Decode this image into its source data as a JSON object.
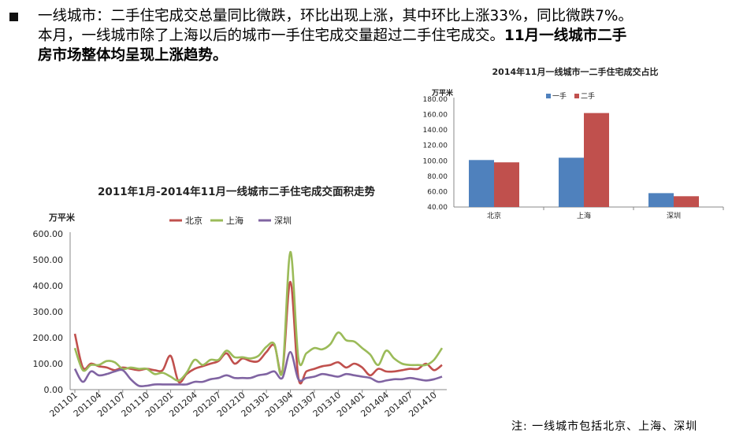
{
  "summary": {
    "line1": "一线城市：二手住宅成交总量同比微跌，环比出现上涨，其中环比上涨33%，同比微跌7%。",
    "line2_plain": "本月，一线城市除了上海以后的城市一手住宅成交量超过二手住宅成交。",
    "line2_bold": "11月一线城市二手",
    "line3_bold": "房市场整体均呈现上涨趋势。"
  },
  "note": "注:  一线城市包括北京、上海、深圳",
  "chart_data": [
    {
      "type": "line",
      "title": "2011年1月-2014年11月一线城市二手住宅成交面积走势",
      "ylabel": "万平米",
      "ylim": [
        0,
        600
      ],
      "yticks": [
        "0.00",
        "100.00",
        "200.00",
        "300.00",
        "400.00",
        "500.00",
        "600.00"
      ],
      "x": [
        "201101",
        "201102",
        "201103",
        "201104",
        "201105",
        "201106",
        "201107",
        "201108",
        "201109",
        "201110",
        "201111",
        "201112",
        "201201",
        "201202",
        "201203",
        "201204",
        "201205",
        "201206",
        "201207",
        "201208",
        "201209",
        "201210",
        "201211",
        "201212",
        "201301",
        "201302",
        "201303",
        "201304",
        "201305",
        "201306",
        "201307",
        "201308",
        "201309",
        "201310",
        "201311",
        "201312",
        "201401",
        "201402",
        "201403",
        "201404",
        "201405",
        "201406",
        "201407",
        "201408",
        "201409",
        "201410",
        "201411"
      ],
      "xtick_labels": [
        "201101",
        "201104",
        "201107",
        "201110",
        "201201",
        "201204",
        "201207",
        "201210",
        "201301",
        "201304",
        "201307",
        "201310",
        "201401",
        "201404",
        "201407",
        "201410"
      ],
      "series": [
        {
          "name": "北京",
          "color": "#c0504d",
          "values": [
            215,
            85,
            100,
            90,
            85,
            75,
            85,
            80,
            75,
            80,
            75,
            75,
            130,
            30,
            60,
            80,
            90,
            100,
            110,
            140,
            100,
            120,
            110,
            110,
            145,
            170,
            70,
            415,
            45,
            70,
            80,
            90,
            95,
            105,
            85,
            100,
            85,
            55,
            80,
            70,
            70,
            75,
            80,
            80,
            100,
            75,
            95
          ]
        },
        {
          "name": "上海",
          "color": "#9bbb59",
          "values": [
            160,
            75,
            95,
            95,
            110,
            105,
            80,
            85,
            80,
            80,
            60,
            65,
            50,
            35,
            65,
            115,
            95,
            115,
            115,
            150,
            125,
            125,
            120,
            130,
            165,
            175,
            70,
            530,
            120,
            140,
            160,
            155,
            175,
            220,
            190,
            185,
            160,
            135,
            95,
            150,
            120,
            100,
            95,
            95,
            95,
            115,
            160
          ]
        },
        {
          "name": "深圳",
          "color": "#8064a2",
          "values": [
            80,
            30,
            70,
            55,
            60,
            70,
            75,
            40,
            15,
            15,
            20,
            20,
            20,
            20,
            20,
            30,
            30,
            40,
            45,
            55,
            45,
            45,
            45,
            55,
            60,
            70,
            45,
            145,
            40,
            45,
            50,
            60,
            55,
            50,
            60,
            55,
            50,
            45,
            30,
            35,
            40,
            40,
            45,
            40,
            35,
            40,
            50
          ]
        }
      ]
    },
    {
      "type": "bar",
      "title": "2014年11月一线城市一二手住宅成交占比",
      "ylabel": "万平米",
      "ylim": [
        40,
        180
      ],
      "yticks": [
        "40.00",
        "60.00",
        "80.00",
        "100.00",
        "120.00",
        "140.00",
        "160.00",
        "180.00"
      ],
      "categories": [
        "北京",
        "上海",
        "深圳"
      ],
      "series": [
        {
          "name": "一手",
          "color": "#4f81bd",
          "values": [
            101,
            104,
            58
          ]
        },
        {
          "name": "二手",
          "color": "#c0504d",
          "values": [
            98,
            162,
            54
          ]
        }
      ]
    }
  ]
}
